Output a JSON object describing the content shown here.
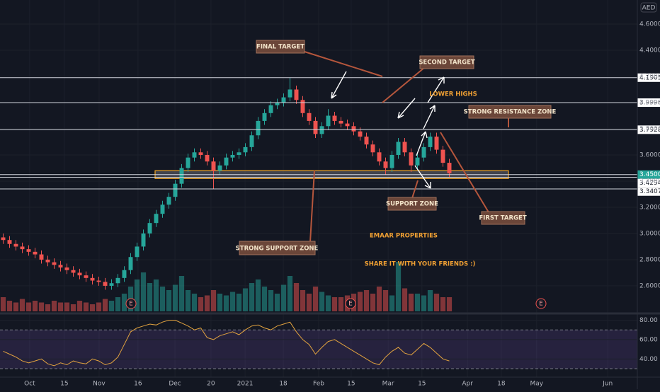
{
  "chart_data": {
    "type": "candlestick",
    "currency": "AED",
    "x": [
      1,
      3,
      5,
      7,
      9,
      11,
      13,
      15,
      17,
      19,
      21,
      23,
      25,
      27,
      29,
      31,
      33,
      35,
      37,
      39,
      41,
      43,
      45,
      47,
      49,
      51,
      53,
      55,
      57,
      59,
      61,
      63,
      65,
      67,
      69,
      71,
      73,
      75,
      77,
      79,
      81,
      83,
      85,
      87,
      89,
      91,
      93,
      95,
      97,
      99,
      101,
      103,
      105,
      107,
      109,
      111,
      113,
      115,
      117,
      119,
      121,
      123,
      125,
      127,
      129,
      131,
      133,
      135,
      137,
      139,
      141
    ],
    "open": [
      2.97,
      2.95,
      2.92,
      2.9,
      2.88,
      2.86,
      2.84,
      2.8,
      2.78,
      2.76,
      2.74,
      2.72,
      2.7,
      2.68,
      2.66,
      2.64,
      2.63,
      2.6,
      2.62,
      2.66,
      2.72,
      2.82,
      2.9,
      3.0,
      3.08,
      3.15,
      3.22,
      3.28,
      3.38,
      3.5,
      3.58,
      3.62,
      3.6,
      3.55,
      3.48,
      3.52,
      3.58,
      3.6,
      3.62,
      3.66,
      3.75,
      3.86,
      3.92,
      3.98,
      4.0,
      4.04,
      4.1,
      4.02,
      3.92,
      3.86,
      3.76,
      3.82,
      3.9,
      3.86,
      3.84,
      3.82,
      3.78,
      3.74,
      3.68,
      3.62,
      3.55,
      3.5,
      3.6,
      3.7,
      3.62,
      3.52,
      3.58,
      3.66,
      3.74,
      3.64,
      3.54
    ],
    "high": [
      3.0,
      2.98,
      2.95,
      2.93,
      2.91,
      2.89,
      2.87,
      2.83,
      2.81,
      2.79,
      2.77,
      2.75,
      2.73,
      2.71,
      2.69,
      2.67,
      2.66,
      2.65,
      2.69,
      2.75,
      2.85,
      2.93,
      3.03,
      3.11,
      3.18,
      3.25,
      3.31,
      3.41,
      3.53,
      3.61,
      3.65,
      3.65,
      3.63,
      3.58,
      3.55,
      3.61,
      3.63,
      3.65,
      3.69,
      3.78,
      3.89,
      3.95,
      4.01,
      4.03,
      4.07,
      4.19,
      4.13,
      4.05,
      3.95,
      3.89,
      3.85,
      3.95,
      3.93,
      3.89,
      3.87,
      3.85,
      3.81,
      3.77,
      3.71,
      3.65,
      3.58,
      3.63,
      3.73,
      3.73,
      3.65,
      3.61,
      3.69,
      3.77,
      3.77,
      3.67,
      3.57
    ],
    "low": [
      2.92,
      2.89,
      2.87,
      2.85,
      2.83,
      2.81,
      2.77,
      2.75,
      2.73,
      2.71,
      2.69,
      2.67,
      2.65,
      2.63,
      2.61,
      2.6,
      2.57,
      2.57,
      2.59,
      2.63,
      2.69,
      2.79,
      2.87,
      2.97,
      3.05,
      3.12,
      3.19,
      3.25,
      3.35,
      3.47,
      3.55,
      3.57,
      3.52,
      3.34,
      3.45,
      3.49,
      3.55,
      3.57,
      3.59,
      3.63,
      3.72,
      3.83,
      3.89,
      3.95,
      3.97,
      4.01,
      3.99,
      3.89,
      3.83,
      3.73,
      3.73,
      3.79,
      3.83,
      3.81,
      3.79,
      3.75,
      3.71,
      3.65,
      3.59,
      3.52,
      3.45,
      3.47,
      3.57,
      3.59,
      3.47,
      3.49,
      3.55,
      3.63,
      3.61,
      3.51,
      3.43
    ],
    "close": [
      2.95,
      2.92,
      2.9,
      2.88,
      2.86,
      2.84,
      2.8,
      2.78,
      2.76,
      2.74,
      2.72,
      2.7,
      2.68,
      2.66,
      2.64,
      2.63,
      2.6,
      2.62,
      2.66,
      2.72,
      2.82,
      2.9,
      3.0,
      3.08,
      3.15,
      3.22,
      3.28,
      3.38,
      3.5,
      3.58,
      3.62,
      3.6,
      3.55,
      3.48,
      3.52,
      3.58,
      3.6,
      3.62,
      3.66,
      3.75,
      3.86,
      3.92,
      3.98,
      4.0,
      4.04,
      4.1,
      4.02,
      3.92,
      3.86,
      3.76,
      3.82,
      3.9,
      3.86,
      3.84,
      3.82,
      3.78,
      3.74,
      3.68,
      3.62,
      3.55,
      3.5,
      3.6,
      3.7,
      3.62,
      3.52,
      3.58,
      3.66,
      3.74,
      3.64,
      3.54,
      3.46
    ],
    "volume": [
      8,
      6,
      5,
      7,
      5,
      6,
      5,
      4,
      6,
      5,
      5,
      4,
      6,
      5,
      4,
      5,
      7,
      6,
      8,
      10,
      14,
      18,
      22,
      16,
      18,
      14,
      12,
      15,
      20,
      12,
      10,
      8,
      9,
      12,
      10,
      9,
      11,
      10,
      13,
      16,
      18,
      14,
      12,
      10,
      15,
      20,
      16,
      12,
      10,
      14,
      11,
      9,
      8,
      8,
      9,
      10,
      11,
      12,
      10,
      14,
      12,
      9,
      28,
      13,
      10,
      10,
      9,
      12,
      10,
      8,
      8
    ],
    "volume_ylim": [
      0,
      34
    ],
    "rsi": [
      48,
      45,
      42,
      38,
      36,
      38,
      40,
      35,
      33,
      36,
      34,
      38,
      36,
      35,
      40,
      38,
      34,
      36,
      42,
      55,
      68,
      72,
      74,
      76,
      75,
      78,
      80,
      80,
      77,
      74,
      70,
      72,
      62,
      60,
      64,
      66,
      68,
      65,
      70,
      74,
      75,
      72,
      70,
      74,
      76,
      78,
      68,
      60,
      55,
      45,
      52,
      58,
      60,
      56,
      52,
      48,
      44,
      40,
      36,
      34,
      42,
      48,
      52,
      46,
      44,
      50,
      56,
      52,
      46,
      40,
      38
    ],
    "rsi_ylim": [
      22,
      84
    ],
    "rsi_bands": [
      30,
      70
    ],
    "rsi_ticks": [
      {
        "value": 80,
        "label": "80.00"
      },
      {
        "value": 60,
        "label": "60.00"
      },
      {
        "value": 40,
        "label": "40.00"
      }
    ],
    "xlim": [
      0,
      200
    ],
    "ylim": [
      2.405,
      4.784
    ],
    "yticks": [
      {
        "value": 2.6,
        "label": "2.6000"
      },
      {
        "value": 2.8,
        "label": "2.8000"
      },
      {
        "value": 3.0,
        "label": "3.0000"
      },
      {
        "value": 3.2,
        "label": "3.2000"
      },
      {
        "value": 3.4,
        "label": "3.4000"
      },
      {
        "value": 3.6,
        "label": "3.6000"
      },
      {
        "value": 3.8,
        "label": "3.8000"
      },
      {
        "value": 4.0,
        "label": "4.0000"
      },
      {
        "value": 4.2,
        "label": "4.2000"
      },
      {
        "value": 4.4,
        "label": "4.4000"
      },
      {
        "value": 4.6,
        "label": "4.6000"
      }
    ],
    "levels": [
      {
        "value": 4.1905,
        "label": "4.1905"
      },
      {
        "value": 3.9998,
        "label": "3.9998"
      },
      {
        "value": 3.7928,
        "label": "3.7928"
      },
      {
        "value": 3.45,
        "label": "3.4500"
      },
      {
        "value": 3.4294,
        "label": "3.4294"
      },
      {
        "value": 3.3407,
        "label": "3.3407"
      }
    ],
    "last_price_level": 3,
    "support_zone": [
      3.42,
      3.48
    ],
    "xticks": [
      {
        "value": 9.3,
        "label": "Oct"
      },
      {
        "value": 20.2,
        "label": "15"
      },
      {
        "value": 31.1,
        "label": "Nov"
      },
      {
        "value": 43.3,
        "label": "16"
      },
      {
        "value": 54.9,
        "label": "Dec"
      },
      {
        "value": 66.2,
        "label": "20"
      },
      {
        "value": 76.9,
        "label": "2021"
      },
      {
        "value": 88.9,
        "label": "18"
      },
      {
        "value": 100,
        "label": "Feb"
      },
      {
        "value": 110.2,
        "label": "15"
      },
      {
        "value": 121.8,
        "label": "Mar"
      },
      {
        "value": 132.4,
        "label": "15"
      },
      {
        "value": 146.7,
        "label": "Apr"
      },
      {
        "value": 157.3,
        "label": "18"
      },
      {
        "value": 168.4,
        "label": "May"
      },
      {
        "value": 190.7,
        "label": "Jun"
      }
    ],
    "up_color": "#26a69a",
    "down_color": "#ef5350",
    "rsi_color": "#e2a33f",
    "annotations": [
      "FINAL TARGET",
      "SECOND TARGET",
      "LOWER HIGHS",
      "STRONG RESISTANCE ZONE",
      "SUPPORT ZONE",
      "FIRST TARGET",
      "STRONG SUPPORT ZONE",
      "EMAAR PROPERTIES",
      "SHARE IT WITH YOUR FRIENDS :)"
    ],
    "events": [
      "E",
      "E",
      "E"
    ]
  }
}
